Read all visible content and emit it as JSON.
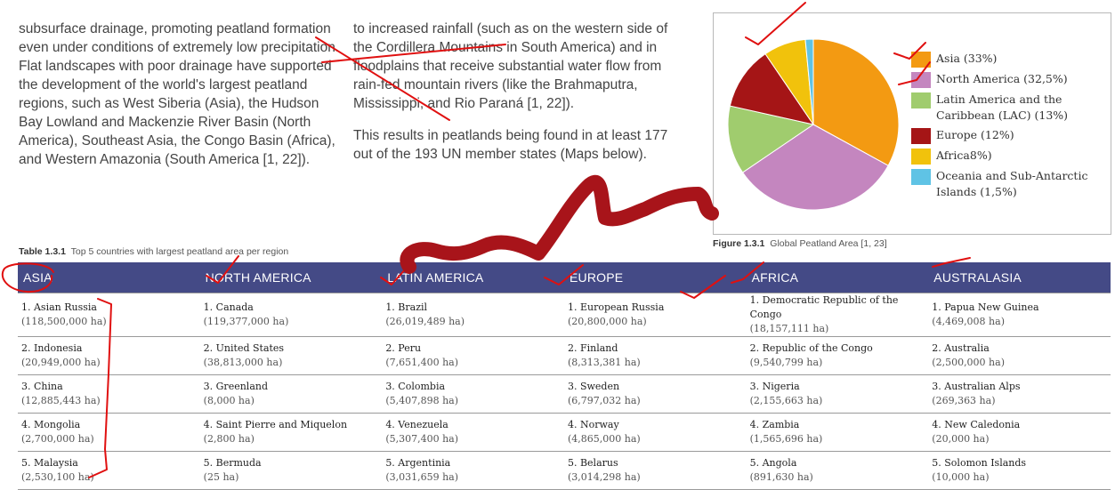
{
  "body_text": {
    "col1_paragraphs": [
      "subsurface drainage, promoting peatland formation even under conditions of extremely low precipitation. Flat landscapes with poor drainage have supported the development of the world's largest peatland regions, such as West Siberia (Asia), the Hudson Bay Lowland and Mackenzie River Basin (North America), Southeast Asia, the Congo Basin (Africa), and Western Amazonia (South America [1, 22])."
    ],
    "col2_paragraphs": [
      "to increased rainfall (such as on the western side of the Cordillera Mountains in South America) and in floodplains that receive substantial water flow from rain-fed mountain rivers (like the Brahmaputra, Mississippi, and Rio Paraná [1, 22]).",
      "This results in peatlands being found in at least 177 out of the 193 UN member states (Maps below)."
    ]
  },
  "figure": {
    "caption_label": "Figure 1.3.1",
    "caption_text": "Global Peatland Area [1, 23]"
  },
  "chart_data": {
    "type": "pie",
    "title": "",
    "slices": [
      {
        "label": "Asia (33%)",
        "value": 33,
        "color": "#f39a12"
      },
      {
        "label": "North America (32,5%)",
        "value": 32.5,
        "color": "#c486bf"
      },
      {
        "label": "Latin America and the Caribbean (LAC) (13%)",
        "value": 13,
        "color": "#a0cc6e"
      },
      {
        "label": "Europe (12%)",
        "value": 12,
        "color": "#a51516"
      },
      {
        "label": "Africa8%)",
        "value": 8,
        "color": "#f1c20c"
      },
      {
        "label": "Oceania and Sub-Antarctic Islands (1,5%)",
        "value": 1.5,
        "color": "#5fc3e5"
      }
    ],
    "legend_position": "right"
  },
  "table": {
    "caption_label": "Table 1.3.1",
    "caption_text": "Top 5 countries with largest peatland area per region",
    "header_color": "#444a86",
    "headers": [
      "ASIA",
      "NORTH AMERICA",
      "LATIN AMERICA",
      "EUROPE",
      "AFRICA",
      "AUSTRALASIA"
    ],
    "rows": [
      [
        {
          "name": "1. Asian Russia",
          "area": "(118,500,000 ha)"
        },
        {
          "name": "1. Canada",
          "area": "(119,377,000 ha)"
        },
        {
          "name": "1. Brazil",
          "area": "(26,019,489 ha)"
        },
        {
          "name": "1. European Russia",
          "area": "(20,800,000 ha)"
        },
        {
          "name": "1. Democratic Republic of the Congo",
          "area": "(18,157,111 ha)"
        },
        {
          "name": "1. Papua New Guinea",
          "area": "(4,469,008 ha)"
        }
      ],
      [
        {
          "name": "2. Indonesia",
          "area": "(20,949,000 ha)"
        },
        {
          "name": "2. United States",
          "area": "(38,813,000 ha)"
        },
        {
          "name": "2. Peru",
          "area": "(7,651,400 ha)"
        },
        {
          "name": "2. Finland",
          "area": "(8,313,381 ha)"
        },
        {
          "name": "2. Republic of the Congo",
          "area": "(9,540,799 ha)"
        },
        {
          "name": "2. Australia",
          "area": "(2,500,000 ha)"
        }
      ],
      [
        {
          "name": "3. China",
          "area": "(12,885,443 ha)"
        },
        {
          "name": "3. Greenland",
          "area": "(8,000 ha)"
        },
        {
          "name": "3. Colombia",
          "area": "(5,407,898 ha)"
        },
        {
          "name": "3. Sweden",
          "area": "(6,797,032 ha)"
        },
        {
          "name": "3. Nigeria",
          "area": "(2,155,663 ha)"
        },
        {
          "name": "3. Australian Alps",
          "area": "(269,363 ha)"
        }
      ],
      [
        {
          "name": "4. Mongolia",
          "area": "(2,700,000 ha)"
        },
        {
          "name": "4. Saint Pierre and Miquelon",
          "area": "(2,800 ha)"
        },
        {
          "name": "4. Venezuela",
          "area": "(5,307,400 ha)"
        },
        {
          "name": "4. Norway",
          "area": "(4,865,000 ha)"
        },
        {
          "name": "4. Zambia",
          "area": "(1,565,696 ha)"
        },
        {
          "name": "4. New Caledonia",
          "area": "(20,000 ha)"
        }
      ],
      [
        {
          "name": "5. Malaysia",
          "area": "(2,530,100 ha)"
        },
        {
          "name": "5. Bermuda",
          "area": "(25 ha)"
        },
        {
          "name": "5. Argentinia",
          "area": "(3,031,659 ha)"
        },
        {
          "name": "5. Belarus",
          "area": "(3,014,298 ha)"
        },
        {
          "name": "5. Angola",
          "area": "(891,630 ha)"
        },
        {
          "name": "5. Solomon Islands",
          "area": "(10,000 ha)"
        }
      ]
    ]
  },
  "annotations": {
    "ink_red": "#e01010",
    "ink_dark": "#a8141a"
  }
}
